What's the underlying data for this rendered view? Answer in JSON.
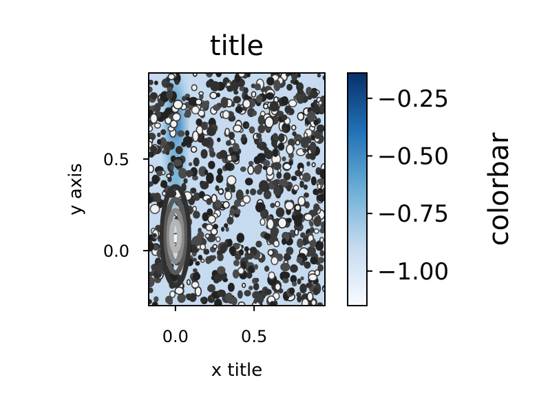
{
  "chart_data": {
    "type": "heatmap",
    "title": "title",
    "xlabel": "x title",
    "ylabel": "y axis",
    "xlim": [
      -0.17,
      0.95
    ],
    "ylim": [
      -0.3,
      0.97
    ],
    "x_ticks": [
      {
        "value": 0.0,
        "label": "0.0"
      },
      {
        "value": 0.5,
        "label": "0.5"
      }
    ],
    "y_ticks": [
      {
        "value": 0.0,
        "label": "0.0"
      },
      {
        "value": 0.5,
        "label": "0.5"
      }
    ],
    "colormap": "Blues",
    "colorbar": {
      "label": "colorbar",
      "range": [
        -1.15,
        -0.14
      ],
      "ticks": [
        {
          "value": -0.25,
          "label": "−0.25"
        },
        {
          "value": -0.5,
          "label": "−0.50"
        },
        {
          "value": -0.75,
          "label": "−0.75"
        },
        {
          "value": -1.0,
          "label": "−1.00"
        }
      ]
    },
    "heatmap_peaks": [
      {
        "x": 0.0,
        "y": 0.65,
        "sx": 0.035,
        "sy": 0.17,
        "amplitude": 0.85
      },
      {
        "x": 0.0,
        "y": 0.4,
        "sx": 0.03,
        "sy": 0.12,
        "amplitude": 0.3
      }
    ],
    "contours": {
      "center": [
        0.0,
        0.08
      ],
      "levels": [
        {
          "rx": 0.085,
          "ry": 0.27,
          "color": "#303030"
        },
        {
          "rx": 0.06,
          "ry": 0.2,
          "color": "#5a5a5a"
        },
        {
          "rx": 0.042,
          "ry": 0.14,
          "color": "#8a8a8a"
        },
        {
          "rx": 0.025,
          "ry": 0.08,
          "color": "#b5b5b5"
        }
      ]
    },
    "scatter": {
      "count": 900,
      "xrange": [
        -0.17,
        0.95
      ],
      "yrange": [
        -0.3,
        0.97
      ],
      "colors": [
        "#222222",
        "#303030",
        "#3c3c3c",
        "#4a4a4a"
      ]
    },
    "grid": false
  }
}
